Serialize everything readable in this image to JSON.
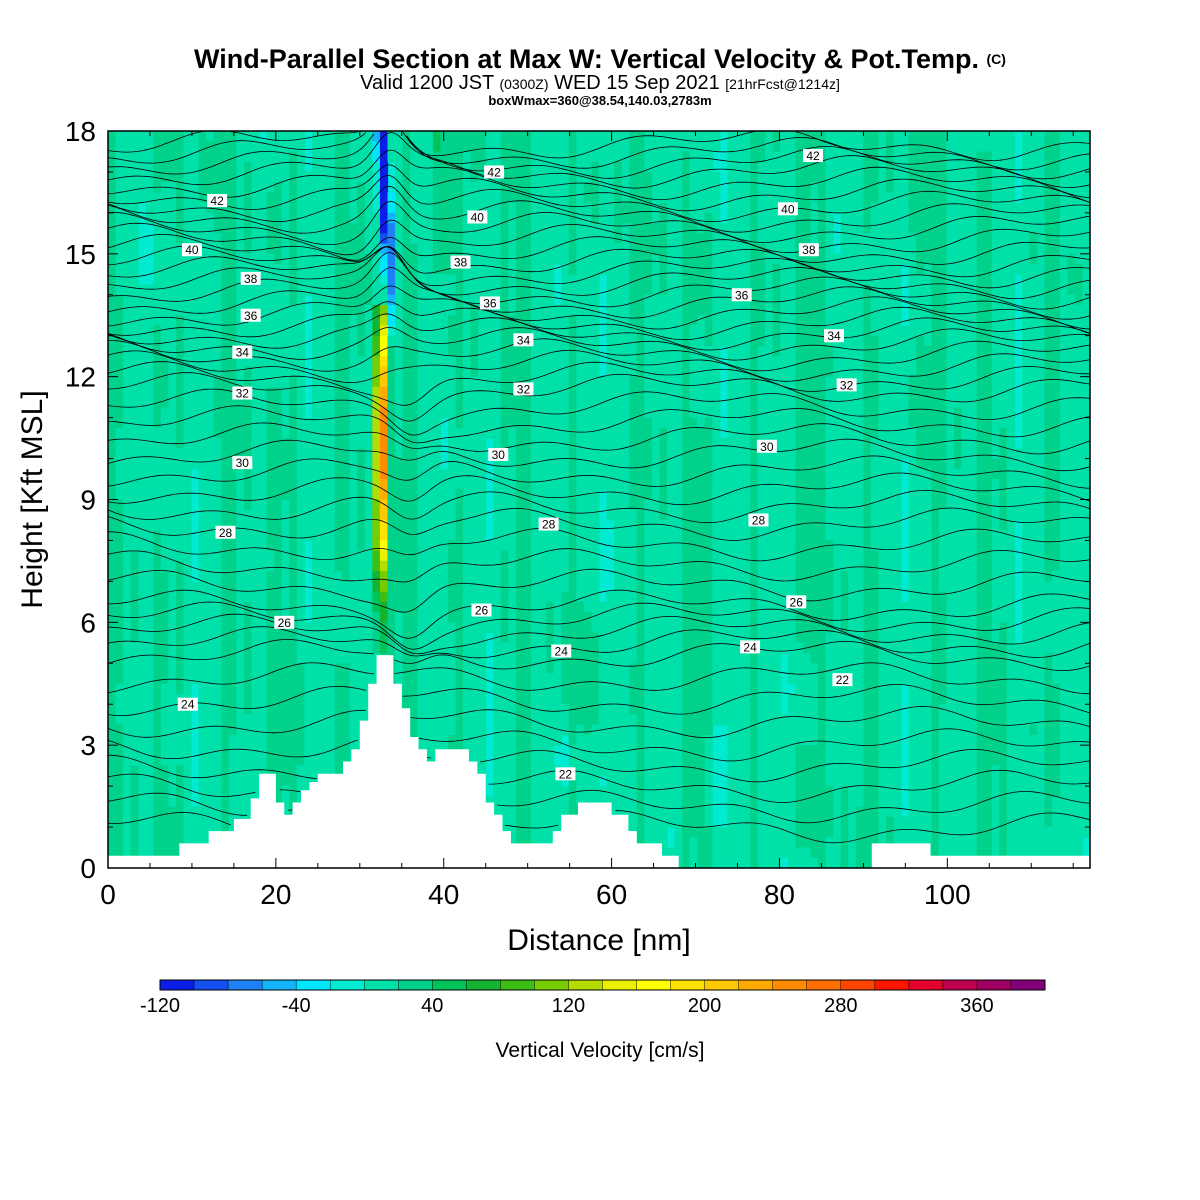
{
  "title": {
    "main": "Wind-Parallel Section at Max W: Vertical Velocity & Pot.Temp.",
    "copyright": "(C)",
    "valid_prefix": "Valid 1200 JST",
    "valid_utc": "(0300Z)",
    "valid_date": "WED 15 Sep 2021",
    "forecast": "[21hrFcst@1214z]",
    "box": "boxWmax=360@38.54,140.03,2783m"
  },
  "chart_data": {
    "type": "heatmap",
    "xlabel": "Distance [nm]",
    "ylabel": "Height [Kft MSL]",
    "xlim": [
      0,
      117
    ],
    "ylim": [
      0,
      18
    ],
    "x_ticks": [
      0,
      20,
      40,
      60,
      80,
      100
    ],
    "y_ticks": [
      0,
      3,
      6,
      9,
      12,
      15,
      18
    ],
    "colorbar": {
      "label": "Vertical Velocity [cm/s]",
      "tick_labels": [
        -120,
        -40,
        40,
        120,
        200,
        280,
        360
      ],
      "range": [
        -120,
        400
      ],
      "step": 20,
      "colors": [
        "#0a1ee6",
        "#1450f0",
        "#1e82f5",
        "#14b4fa",
        "#00e6ff",
        "#00ebd2",
        "#00e1aa",
        "#00d28c",
        "#00c35a",
        "#14b432",
        "#3cbe14",
        "#78cd00",
        "#b4dc00",
        "#ebf000",
        "#ffff00",
        "#ffe100",
        "#ffc800",
        "#ffaa00",
        "#ff8c00",
        "#ff6e00",
        "#ff4600",
        "#ff1400",
        "#e6002d",
        "#be0050",
        "#a00064",
        "#820078"
      ]
    },
    "terrain_kft": [
      [
        0,
        0.3
      ],
      [
        8.5,
        0.3
      ],
      [
        8.5,
        0.6
      ],
      [
        12,
        0.6
      ],
      [
        12,
        0.9
      ],
      [
        15,
        0.9
      ],
      [
        15,
        1.2
      ],
      [
        17,
        1.2
      ],
      [
        17,
        1.7
      ],
      [
        18,
        1.7
      ],
      [
        18,
        2.3
      ],
      [
        20,
        2.3
      ],
      [
        20,
        1.6
      ],
      [
        21,
        1.6
      ],
      [
        21,
        1.3
      ],
      [
        22,
        1.3
      ],
      [
        22,
        1.6
      ],
      [
        23,
        1.6
      ],
      [
        23,
        1.9
      ],
      [
        24,
        1.9
      ],
      [
        24,
        2.1
      ],
      [
        25,
        2.1
      ],
      [
        25,
        2.3
      ],
      [
        28,
        2.3
      ],
      [
        28,
        2.6
      ],
      [
        29,
        2.6
      ],
      [
        29,
        2.9
      ],
      [
        30,
        2.9
      ],
      [
        30,
        3.6
      ],
      [
        31,
        3.6
      ],
      [
        31,
        4.5
      ],
      [
        32,
        4.5
      ],
      [
        32,
        5.2
      ],
      [
        34,
        5.2
      ],
      [
        34,
        4.5
      ],
      [
        35,
        4.5
      ],
      [
        35,
        3.9
      ],
      [
        36,
        3.9
      ],
      [
        36,
        3.2
      ],
      [
        37,
        3.2
      ],
      [
        37,
        2.9
      ],
      [
        38,
        2.9
      ],
      [
        38,
        2.6
      ],
      [
        39,
        2.6
      ],
      [
        39,
        2.9
      ],
      [
        43,
        2.9
      ],
      [
        43,
        2.6
      ],
      [
        44,
        2.6
      ],
      [
        44,
        2.3
      ],
      [
        45,
        2.3
      ],
      [
        45,
        1.6
      ],
      [
        46,
        1.6
      ],
      [
        46,
        1.3
      ],
      [
        47,
        1.3
      ],
      [
        47,
        0.9
      ],
      [
        48,
        0.9
      ],
      [
        48,
        0.6
      ],
      [
        53,
        0.6
      ],
      [
        53,
        0.9
      ],
      [
        54,
        0.9
      ],
      [
        54,
        1.3
      ],
      [
        56,
        1.3
      ],
      [
        56,
        1.6
      ],
      [
        60,
        1.6
      ],
      [
        60,
        1.3
      ],
      [
        62,
        1.3
      ],
      [
        62,
        0.9
      ],
      [
        63,
        0.9
      ],
      [
        63,
        0.6
      ],
      [
        66,
        0.6
      ],
      [
        66,
        0.3
      ],
      [
        68,
        0.3
      ],
      [
        68,
        0.0
      ],
      [
        91,
        0.0
      ],
      [
        91,
        0.6
      ],
      [
        98,
        0.6
      ],
      [
        98,
        0.3
      ],
      [
        117,
        0.3
      ]
    ],
    "theta_contours": [
      {
        "level": 22,
        "labels": [
          [
            54.5,
            2.3
          ],
          [
            87.5,
            4.6
          ]
        ]
      },
      {
        "level": 24,
        "labels": [
          [
            9.5,
            4.0
          ],
          [
            54,
            5.3
          ],
          [
            76.5,
            5.4
          ]
        ]
      },
      {
        "level": 26,
        "labels": [
          [
            21,
            6.0
          ],
          [
            44.5,
            6.3
          ],
          [
            82,
            6.5
          ]
        ]
      },
      {
        "level": 28,
        "labels": [
          [
            14,
            8.2
          ],
          [
            52.5,
            8.4
          ],
          [
            77.5,
            8.5
          ]
        ]
      },
      {
        "level": 30,
        "labels": [
          [
            16,
            9.9
          ],
          [
            46.5,
            10.1
          ],
          [
            78.5,
            10.3
          ]
        ]
      },
      {
        "level": 32,
        "labels": [
          [
            16,
            11.6
          ],
          [
            49.5,
            11.7
          ],
          [
            88,
            11.8
          ]
        ]
      },
      {
        "level": 34,
        "labels": [
          [
            16,
            12.6
          ],
          [
            49.5,
            12.9
          ],
          [
            86.5,
            13.0
          ]
        ]
      },
      {
        "level": 36,
        "labels": [
          [
            17,
            13.5
          ],
          [
            45.5,
            13.8
          ],
          [
            75.5,
            14.0
          ]
        ]
      },
      {
        "level": 38,
        "labels": [
          [
            17,
            14.4
          ],
          [
            42,
            14.8
          ],
          [
            83.5,
            15.1
          ]
        ]
      },
      {
        "level": 40,
        "labels": [
          [
            10,
            15.1
          ],
          [
            44,
            15.9
          ],
          [
            81,
            16.1
          ]
        ]
      },
      {
        "level": 42,
        "labels": [
          [
            13,
            16.3
          ],
          [
            46,
            17.0
          ],
          [
            84,
            17.4
          ]
        ]
      }
    ],
    "updraft": {
      "x": 32.5,
      "max": 360,
      "max_height": 10.5,
      "top": 13.4
    },
    "downdraft": {
      "x": 34,
      "min": -120,
      "height": 16.0
    }
  }
}
